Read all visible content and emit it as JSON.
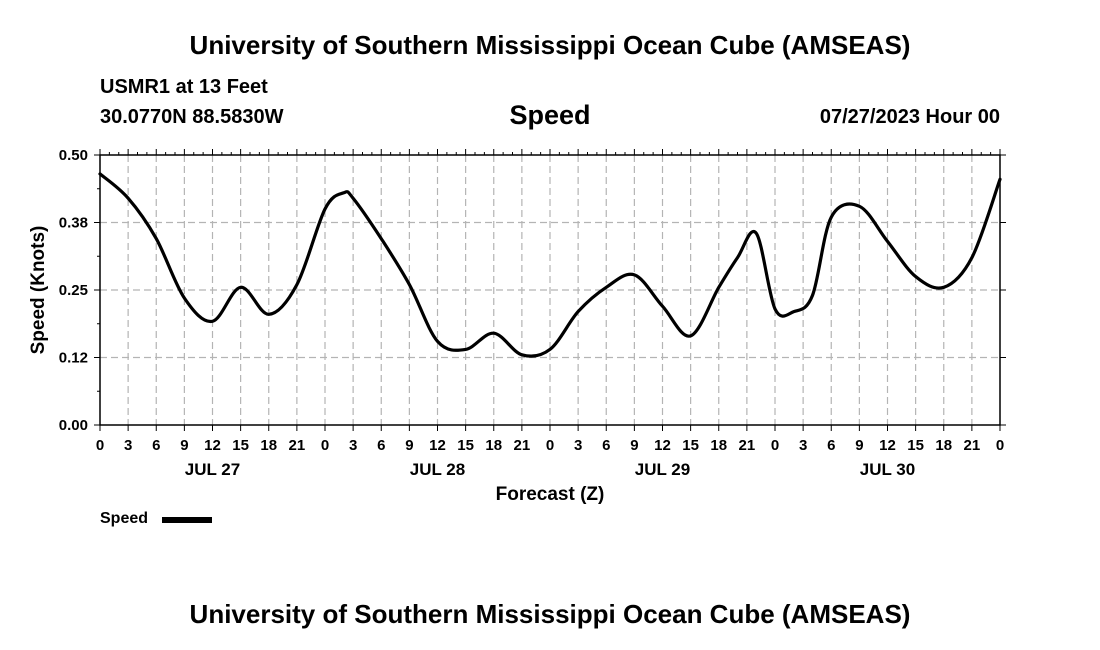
{
  "header": {
    "title": "University of Southern Mississippi Ocean Cube (AMSEAS)",
    "station": "USMR1 at 13 Feet",
    "coords": "30.0770N  88.5830W",
    "run_time": "07/27/2023 Hour 00"
  },
  "footer": {
    "title": "University of Southern Mississippi Ocean Cube (AMSEAS)"
  },
  "legend": {
    "label": "Speed"
  },
  "colors": {
    "line": "#000000",
    "grid": "#b4b4b4"
  },
  "chart_data": {
    "type": "line",
    "title": "Speed",
    "xlabel": "Forecast (Z)",
    "ylabel": "Speed (Knots)",
    "xlim": [
      0,
      96
    ],
    "ylim": [
      0,
      0.5
    ],
    "yticks": [
      0.0,
      0.125,
      0.25,
      0.375,
      0.5
    ],
    "ytick_labels": [
      "0.00",
      "0.12",
      "0.25",
      "0.38",
      "0.50"
    ],
    "xtick_step_hours": 3,
    "xtick_labels": [
      "0",
      "3",
      "6",
      "9",
      "12",
      "15",
      "18",
      "21",
      "0",
      "3",
      "6",
      "9",
      "12",
      "15",
      "18",
      "21",
      "0",
      "3",
      "6",
      "9",
      "12",
      "15",
      "18",
      "21",
      "0",
      "3",
      "6",
      "9",
      "12",
      "15",
      "18",
      "21",
      "0"
    ],
    "day_labels": [
      {
        "hour": 12,
        "label": "JUL 27"
      },
      {
        "hour": 36,
        "label": "JUL 28"
      },
      {
        "hour": 60,
        "label": "JUL 29"
      },
      {
        "hour": 84,
        "label": "JUL 30"
      }
    ],
    "grid": true,
    "series": [
      {
        "name": "Speed",
        "x": [
          0,
          3,
          6,
          9,
          12,
          15,
          18,
          21,
          24,
          26,
          27,
          30,
          33,
          36,
          39,
          42,
          45,
          48,
          51,
          54,
          57,
          60,
          63,
          66,
          68,
          70,
          72,
          74,
          76,
          78,
          81,
          84,
          87,
          90,
          93,
          96
        ],
        "y": [
          0.465,
          0.42,
          0.345,
          0.235,
          0.192,
          0.255,
          0.205,
          0.26,
          0.4,
          0.43,
          0.42,
          0.345,
          0.26,
          0.155,
          0.14,
          0.17,
          0.13,
          0.14,
          0.21,
          0.255,
          0.278,
          0.22,
          0.165,
          0.255,
          0.31,
          0.355,
          0.215,
          0.21,
          0.24,
          0.385,
          0.405,
          0.34,
          0.275,
          0.255,
          0.31,
          0.455
        ]
      }
    ]
  }
}
